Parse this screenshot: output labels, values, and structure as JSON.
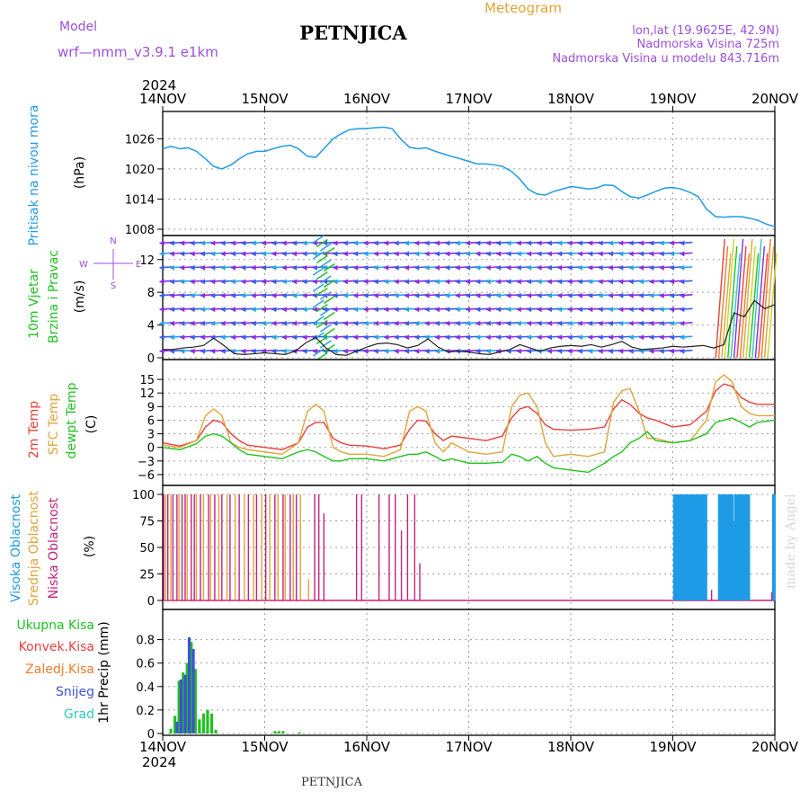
{
  "header": {
    "model_label": "Model",
    "model_value": "wrf—nmm_v3.9.1  e1km",
    "title": "PETNJICA",
    "meteogram_label": "Meteogram",
    "coords": "lon,lat (19.9625E, 42.9N)",
    "elevation": "Nadmorska Visina 725m",
    "model_elevation": "Nadmorska Visina u modelu 843.716m",
    "footer_station": "PETNJICA",
    "watermark": "made by Angel",
    "year": "2024"
  },
  "time_axis": {
    "ticks": [
      "14NOV",
      "15NOV",
      "16NOV",
      "17NOV",
      "18NOV",
      "19NOV",
      "20NOV"
    ],
    "range_days": [
      0,
      6
    ]
  },
  "colors": {
    "pressure": "#1e9be6",
    "temp2m": "#e8403a",
    "sfctemp": "#e0a43a",
    "dewpt": "#1fc21f",
    "high_cloud": "#1e9be6",
    "mid_cloud": "#e0a43a",
    "low_cloud": "#c0247f",
    "total_precip": "#1fc21f",
    "snow": "#4050d8",
    "conv": "#e8403a",
    "frozen": "#ef7a2a",
    "hail": "#2ec7c0",
    "wind_purple": "#8a2be2",
    "wind_blue": "#3a5ae8"
  },
  "chart_data": [
    {
      "type": "line",
      "panel": "pressure",
      "ylabel_main": "Pritisak na nivou mora",
      "unit": "(hPa)",
      "ylim": [
        1008,
        1030
      ],
      "yticks": [
        "1026",
        "1020",
        "1014",
        "1008"
      ],
      "series": [
        {
          "x": [
            0,
            0.08,
            0.17,
            0.25,
            0.33,
            0.42,
            0.5,
            0.58,
            0.67,
            0.75,
            0.83,
            0.92,
            1,
            1.08,
            1.17,
            1.25,
            1.33,
            1.42,
            1.5,
            1.58,
            1.67,
            1.75,
            1.83,
            1.92,
            2,
            2.08,
            2.17,
            2.25,
            2.33,
            2.42,
            2.5,
            2.58,
            2.67,
            2.75,
            2.83,
            2.92,
            3,
            3.08,
            3.17,
            3.25,
            3.33,
            3.42,
            3.5,
            3.58,
            3.67,
            3.75,
            3.83,
            3.92,
            4,
            4.08,
            4.17,
            4.25,
            4.33,
            4.42,
            4.5,
            4.58,
            4.67,
            4.75,
            4.83,
            4.92,
            5,
            5.08,
            5.17,
            5.25,
            5.33,
            5.42,
            5.5,
            5.58,
            5.67,
            5.75,
            5.83,
            5.92,
            6
          ],
          "values": [
            1024,
            1024.5,
            1024,
            1024.2,
            1023.5,
            1022,
            1020.5,
            1020,
            1020.8,
            1022,
            1023,
            1023.5,
            1023.5,
            1024,
            1024.5,
            1024.7,
            1024,
            1022.5,
            1022.3,
            1024,
            1026,
            1027,
            1027.8,
            1028,
            1028,
            1028.2,
            1028.3,
            1028,
            1026,
            1024.3,
            1024,
            1024.2,
            1023.5,
            1023,
            1022.5,
            1022,
            1021.5,
            1021,
            1021,
            1020.8,
            1020.5,
            1019.5,
            1018,
            1016,
            1015,
            1014.8,
            1015.5,
            1016,
            1016.5,
            1016.3,
            1016,
            1016.2,
            1016.8,
            1016.7,
            1015.5,
            1014.5,
            1014.2,
            1014.8,
            1015.5,
            1016.2,
            1016.3,
            1016,
            1015.3,
            1014.5,
            1012,
            1010.5,
            1010.4,
            1010.5,
            1010.5,
            1010.2,
            1009.8,
            1009,
            1008.5
          ]
        }
      ]
    },
    {
      "type": "line",
      "panel": "wind",
      "ylabel_main": "10m Vjetar",
      "ylabel_sub": "Brzina i Pravac",
      "unit": "(m/s)",
      "ylim": [
        0,
        14.5
      ],
      "yticks": [
        "12",
        "8",
        "4",
        "0"
      ],
      "compass": [
        "N",
        "W",
        "E",
        "S"
      ],
      "series": [
        {
          "name": "wind_speed",
          "x": [
            0,
            0.1,
            0.2,
            0.3,
            0.4,
            0.5,
            0.6,
            0.7,
            0.8,
            0.9,
            1,
            1.1,
            1.2,
            1.3,
            1.4,
            1.5,
            1.6,
            1.7,
            1.8,
            1.9,
            2,
            2.1,
            2.2,
            2.3,
            2.4,
            2.5,
            2.6,
            2.7,
            2.8,
            2.9,
            3,
            3.1,
            3.2,
            3.3,
            3.4,
            3.5,
            3.6,
            3.7,
            3.8,
            3.9,
            4,
            4.1,
            4.2,
            4.3,
            4.4,
            4.5,
            4.6,
            4.7,
            4.8,
            4.9,
            5,
            5.1,
            5.2,
            5.3,
            5.4,
            5.5,
            5.6,
            5.7,
            5.8,
            5.9,
            6
          ],
          "values": [
            1,
            1,
            1.2,
            1.3,
            1.5,
            2.4,
            1.5,
            0.5,
            0.4,
            0.5,
            0.6,
            0.5,
            0.4,
            0.8,
            1.8,
            2.5,
            1.2,
            0.4,
            0.3,
            0.8,
            1.3,
            1.7,
            1.8,
            1.6,
            1.2,
            1.5,
            2.3,
            1.3,
            0.7,
            0.8,
            0.7,
            0.5,
            0.4,
            0.7,
            1,
            1.6,
            1.2,
            0.8,
            1.2,
            1.4,
            1.5,
            1.4,
            1.6,
            1.3,
            1.6,
            2,
            1.3,
            1,
            1.1,
            1.2,
            1.4,
            1.3,
            1.4,
            1.5,
            1.2,
            1.6,
            5.5,
            5,
            7,
            6,
            6.5
          ]
        }
      ]
    },
    {
      "type": "line",
      "panel": "temperature",
      "ylabel_lines": [
        "2m Temp",
        "SFC Temp",
        "dewpt Temp"
      ],
      "unit": "(C)",
      "ylim": [
        -7,
        17
      ],
      "yticks": [
        "15",
        "12",
        "9",
        "6",
        "3",
        "0",
        "−3",
        "−6"
      ],
      "series": [
        {
          "name": "2m Temp",
          "x": [
            0,
            0.17,
            0.33,
            0.42,
            0.5,
            0.58,
            0.67,
            0.75,
            0.83,
            1,
            1.17,
            1.33,
            1.42,
            1.5,
            1.58,
            1.67,
            1.75,
            1.83,
            2,
            2.17,
            2.33,
            2.42,
            2.5,
            2.58,
            2.67,
            2.75,
            2.83,
            3,
            3.17,
            3.33,
            3.42,
            3.5,
            3.58,
            3.67,
            3.75,
            3.83,
            4,
            4.17,
            4.33,
            4.42,
            4.5,
            4.58,
            4.67,
            4.75,
            4.83,
            5,
            5.17,
            5.33,
            5.42,
            5.5,
            5.58,
            5.67,
            5.75,
            5.83,
            6
          ],
          "values": [
            1,
            0.3,
            1.5,
            4.5,
            6,
            5.5,
            3,
            1.5,
            0.5,
            0,
            -0.5,
            1,
            4.5,
            5.5,
            5.5,
            2,
            1,
            0.5,
            0.3,
            -0.3,
            0.5,
            4,
            6,
            5.8,
            3,
            1.5,
            2.5,
            2,
            1.5,
            2.5,
            6.5,
            8.5,
            9,
            7.5,
            5,
            4,
            3.8,
            4,
            4.5,
            8.5,
            10.5,
            9.5,
            7.5,
            6.5,
            6,
            4.5,
            5,
            8,
            12.5,
            14,
            13.5,
            11,
            10,
            9.5,
            9.5
          ]
        },
        {
          "name": "SFC Temp",
          "x": [
            0,
            0.17,
            0.33,
            0.42,
            0.5,
            0.58,
            0.67,
            0.75,
            0.83,
            1,
            1.17,
            1.33,
            1.42,
            1.5,
            1.58,
            1.67,
            1.75,
            1.83,
            2,
            2.17,
            2.33,
            2.42,
            2.5,
            2.58,
            2.67,
            2.75,
            2.83,
            3,
            3.17,
            3.33,
            3.42,
            3.5,
            3.58,
            3.67,
            3.75,
            3.83,
            4,
            4.17,
            4.33,
            4.42,
            4.5,
            4.58,
            4.67,
            4.75,
            4.83,
            5,
            5.17,
            5.33,
            5.42,
            5.5,
            5.58,
            5.67,
            5.75,
            5.83,
            6
          ],
          "values": [
            0.5,
            0,
            1.5,
            7,
            8.5,
            7,
            1,
            0,
            -0.5,
            -1,
            -1.5,
            1,
            8,
            9.5,
            8,
            0,
            -1,
            -1.5,
            -1.5,
            -2,
            -0.5,
            8,
            9,
            8,
            1,
            -1,
            1,
            -1,
            -1.5,
            -1,
            9,
            11.5,
            12,
            9,
            1,
            -2,
            -1.5,
            -2,
            -1,
            10,
            12.5,
            13,
            8,
            2,
            2,
            1,
            1.5,
            6,
            14.5,
            16,
            14.5,
            9,
            7.5,
            7,
            7
          ]
        },
        {
          "name": "dewpt Temp",
          "x": [
            0,
            0.17,
            0.33,
            0.42,
            0.5,
            0.58,
            0.67,
            0.75,
            0.83,
            1,
            1.17,
            1.33,
            1.42,
            1.5,
            1.58,
            1.67,
            1.75,
            1.83,
            2,
            2.17,
            2.33,
            2.42,
            2.5,
            2.58,
            2.67,
            2.75,
            2.83,
            3,
            3.17,
            3.33,
            3.42,
            3.5,
            3.58,
            3.67,
            3.75,
            3.83,
            4,
            4.17,
            4.33,
            4.42,
            4.5,
            4.58,
            4.67,
            4.75,
            4.83,
            5,
            5.17,
            5.33,
            5.42,
            5.5,
            5.58,
            5.67,
            5.75,
            5.83,
            6
          ],
          "values": [
            0,
            -0.5,
            0.8,
            2.5,
            3,
            2.5,
            1,
            -0.5,
            -1.5,
            -2,
            -2.5,
            -1,
            -0.5,
            -1,
            -2,
            -3,
            -3,
            -2.5,
            -2.5,
            -3,
            -2,
            -1.5,
            -1.5,
            -1,
            -2,
            -3,
            -2.5,
            -3.5,
            -3.5,
            -3.3,
            -1.5,
            -2,
            -3,
            -2,
            -3.5,
            -4.5,
            -5,
            -5.5,
            -3.5,
            -2,
            -1,
            1,
            2,
            3.5,
            1.5,
            1,
            1.5,
            3,
            5.5,
            6,
            6.5,
            5.5,
            4.5,
            5.5,
            6
          ]
        }
      ]
    },
    {
      "type": "bar",
      "panel": "cloud",
      "ylabel_lines": [
        "Visoka Oblacnost",
        "Srednja Oblacnost",
        "Niska Oblacnost"
      ],
      "unit": "(%)",
      "ylim": [
        0,
        100
      ],
      "yticks": [
        "100",
        "75",
        "50",
        "25",
        "0"
      ],
      "series": [
        {
          "name": "Visoka Oblacnost",
          "x": [
            5.02,
            5.04,
            5.06,
            5.08,
            5.1,
            5.12,
            5.14,
            5.16,
            5.18,
            5.2,
            5.22,
            5.24,
            5.26,
            5.28,
            5.3,
            5.32,
            5.46,
            5.48,
            5.5,
            5.52,
            5.54,
            5.56,
            5.58,
            5.6,
            5.62,
            5.64,
            5.66,
            5.68,
            5.7,
            5.72,
            5.74,
            5.99
          ],
          "values": [
            100,
            100,
            100,
            100,
            100,
            100,
            100,
            100,
            100,
            100,
            100,
            100,
            100,
            100,
            100,
            100,
            100,
            100,
            100,
            100,
            100,
            100,
            100,
            75,
            100,
            100,
            100,
            100,
            100,
            100,
            100,
            100
          ]
        },
        {
          "name": "Srednja Oblacnost",
          "x": [
            0.03,
            0.08,
            0.16,
            0.24,
            0.33,
            0.4,
            0.47,
            0.55,
            0.63,
            0.71,
            0.8,
            0.89,
            0.97,
            1.05,
            1.13,
            1.2,
            1.28,
            1.35,
            1.43
          ],
          "values": [
            100,
            100,
            100,
            100,
            100,
            100,
            100,
            100,
            100,
            100,
            100,
            100,
            100,
            100,
            100,
            100,
            100,
            100,
            20
          ]
        },
        {
          "name": "Niska Oblacnost",
          "x": [
            0.01,
            0.05,
            0.1,
            0.14,
            0.19,
            0.22,
            0.28,
            0.31,
            0.37,
            0.45,
            0.51,
            0.58,
            0.66,
            0.75,
            0.84,
            0.92,
            1.01,
            1.1,
            1.18,
            1.25,
            1.31,
            1.49,
            1.53,
            1.58,
            1.9,
            1.95,
            2.12,
            2.22,
            2.28,
            2.34,
            2.4,
            2.47,
            2.52,
            5.38,
            5.97
          ],
          "values": [
            100,
            100,
            100,
            100,
            100,
            100,
            100,
            100,
            100,
            100,
            100,
            100,
            100,
            100,
            100,
            100,
            100,
            100,
            100,
            100,
            100,
            100,
            100,
            82,
            100,
            100,
            100,
            100,
            100,
            66,
            100,
            100,
            35,
            10,
            8
          ]
        }
      ]
    },
    {
      "type": "bar",
      "panel": "precipitation",
      "ylabel_lines": [
        "Ukupna Kisa",
        "Konvek.Kisa",
        "Zaledj.Kisa",
        "Snijeg",
        "Grad"
      ],
      "unit": "1hr Precip (mm)",
      "ylim": [
        0,
        0.95
      ],
      "yticks": [
        "0.8",
        "0.6",
        "0.4",
        "0.2",
        "0"
      ],
      "series": [
        {
          "name": "Ukupna Kisa",
          "x": [
            0.08,
            0.12,
            0.16,
            0.2,
            0.24,
            0.28,
            0.32,
            0.36,
            0.4,
            0.44,
            0.48,
            0.52,
            1.1,
            1.14,
            1.18,
            1.34
          ],
          "values": [
            0.04,
            0.15,
            0.45,
            0.52,
            0.6,
            0.78,
            0.55,
            0.12,
            0.17,
            0.2,
            0.17,
            0.03,
            0.02,
            0.02,
            0.02,
            0.01
          ]
        },
        {
          "name": "Snijeg",
          "x": [
            0.14,
            0.18,
            0.22,
            0.26,
            0.3
          ],
          "values": [
            0.1,
            0.46,
            0.5,
            0.82,
            0.72
          ]
        }
      ]
    }
  ]
}
